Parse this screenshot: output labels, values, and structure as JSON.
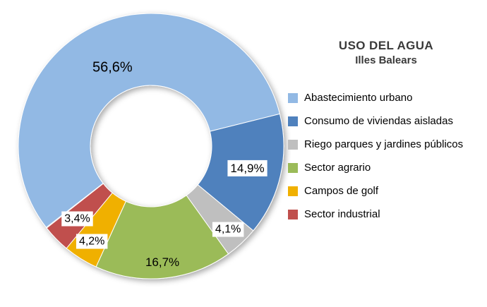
{
  "header": {
    "title": "USO DEL AGUA",
    "subtitle": "Illes Balears"
  },
  "chart_data": {
    "type": "pie",
    "donut": true,
    "title": "USO DEL AGUA",
    "subtitle": "Illes Balears",
    "legend_position": "right",
    "grid": false,
    "start_angle_deg": 232.2,
    "slices": [
      {
        "name": "Abastecimiento urbano",
        "value": 56.6,
        "label": "56,6%",
        "color": "#92B9E4",
        "label_radius": 125,
        "label_size": 20,
        "label_bg": false
      },
      {
        "name": "Consumo de viviendas aisladas",
        "value": 14.9,
        "label": "14,9%",
        "color": "#4F81BD",
        "label_radius": 140,
        "label_size": 17,
        "label_bg": true
      },
      {
        "name": "Riego parques y jardines públicos",
        "value": 4.1,
        "label": "4,1%",
        "color": "#BFBFBF",
        "label_radius": 160,
        "label_size": 16,
        "label_bg": true
      },
      {
        "name": "Sector agrario",
        "value": 16.7,
        "label": "16,7%",
        "color": "#9BBB59",
        "label_radius": 165,
        "label_size": 17,
        "label_bg": false
      },
      {
        "name": "Campos de golf",
        "value": 4.2,
        "label": "4,2%",
        "color": "#F0B000",
        "label_radius": 158,
        "label_size": 16,
        "label_bg": true
      },
      {
        "name": "Sector industrial",
        "value": 3.4,
        "label": "3,4%",
        "color": "#C0504D",
        "label_radius": 146,
        "label_size": 16,
        "label_bg": true
      }
    ]
  }
}
